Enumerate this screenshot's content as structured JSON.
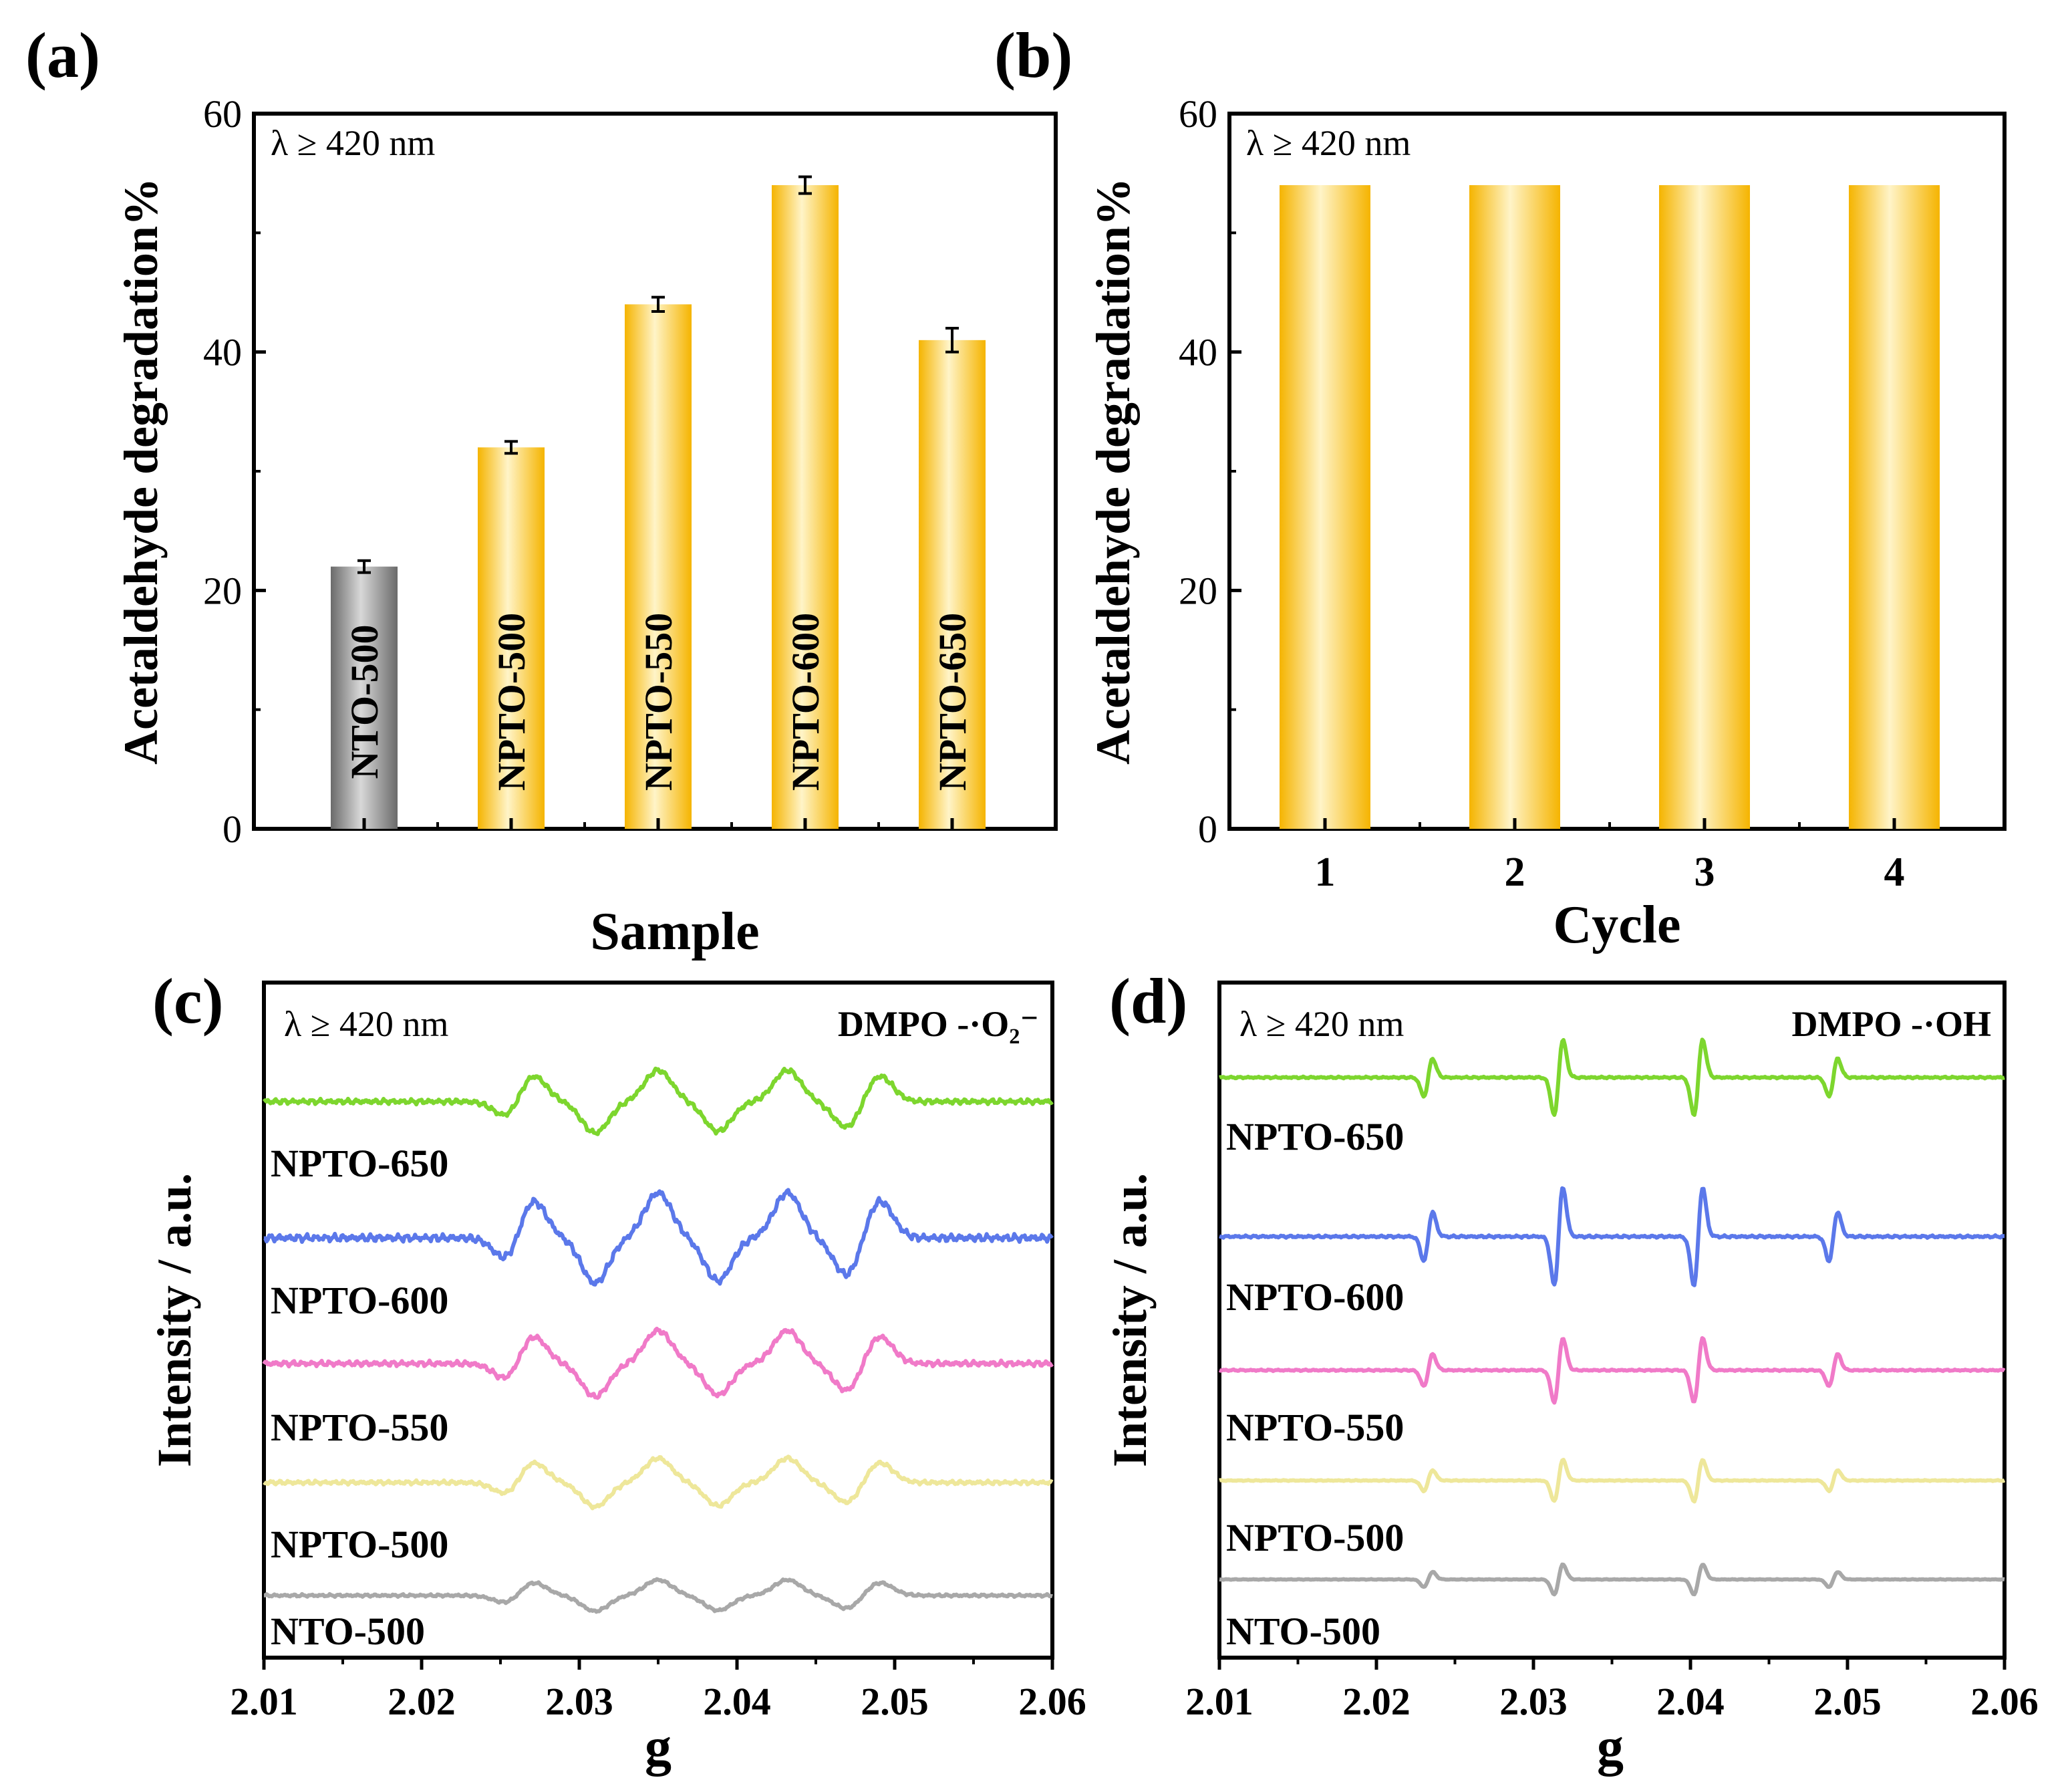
{
  "figure": {
    "panel_labels": [
      "(a)",
      "(b)",
      "(c)",
      "(d)"
    ]
  },
  "chart_data": [
    {
      "id": "a",
      "type": "bar",
      "annotation": "λ ≥ 420 nm",
      "xlabel": "Sample",
      "ylabel": "Acetaldehyde degradation%",
      "ylim": [
        0,
        60
      ],
      "yticks": [
        "0",
        "20",
        "40",
        "60"
      ],
      "categories": [
        "NTO-500",
        "NPTO-500",
        "NPTO-550",
        "NPTO-600",
        "NPTO-650"
      ],
      "values": [
        22,
        32,
        44,
        54,
        41
      ],
      "errors": [
        0.5,
        0.5,
        0.6,
        0.7,
        1.0
      ],
      "colors": [
        "#8a8a8a",
        "#f5b400",
        "#f5b400",
        "#f5b400",
        "#f5b400"
      ]
    },
    {
      "id": "b",
      "type": "bar",
      "annotation": "λ ≥ 420 nm",
      "xlabel": "Cycle",
      "ylabel": "Acetaldehyde degradation%",
      "ylim": [
        0,
        60
      ],
      "yticks": [
        "0",
        "20",
        "40",
        "60"
      ],
      "categories": [
        "1",
        "2",
        "3",
        "4"
      ],
      "values": [
        54,
        54,
        54,
        54
      ],
      "colors": [
        "#f5b400",
        "#f5b400",
        "#f5b400",
        "#f5b400"
      ]
    },
    {
      "id": "c",
      "type": "line",
      "annotation": "λ ≥ 420 nm",
      "probe": "DMPO -·O₂⁻",
      "xlabel": "g",
      "ylabel": "Intensity / a.u.",
      "xlim": [
        2.01,
        2.06
      ],
      "xticks": [
        "2.01",
        "2.02",
        "2.03",
        "2.04",
        "2.05",
        "2.06"
      ],
      "peaks": [
        {
          "g": 2.0255,
          "sign": -1,
          "h": 0.55
        },
        {
          "g": 2.027,
          "sign": 1,
          "h": 0.9
        },
        {
          "g": 2.031,
          "sign": -1,
          "h": 1.0
        },
        {
          "g": 2.035,
          "sign": 1,
          "h": 1.0
        },
        {
          "g": 2.0388,
          "sign": -1,
          "h": 0.95
        },
        {
          "g": 2.0432,
          "sign": 1,
          "h": 1.0
        },
        {
          "g": 2.047,
          "sign": -1,
          "h": 0.85
        },
        {
          "g": 2.049,
          "sign": 1,
          "h": 0.85
        }
      ],
      "series": [
        {
          "name": "NPTO-650",
          "color": "#7dd62e",
          "scale": 0.9
        },
        {
          "name": "NPTO-600",
          "color": "#5b78ea",
          "scale": 1.3
        },
        {
          "name": "NPTO-550",
          "color": "#f07ac8",
          "scale": 0.95
        },
        {
          "name": "NPTO-500",
          "color": "#eee79a",
          "scale": 0.7
        },
        {
          "name": "NTO-500",
          "color": "#a8a8a8",
          "scale": 0.45
        }
      ]
    },
    {
      "id": "d",
      "type": "line",
      "annotation": "λ ≥ 420 nm",
      "probe": "DMPO -·OH",
      "xlabel": "g",
      "ylabel": "Intensity / a.u.",
      "xlim": [
        2.01,
        2.06
      ],
      "xticks": [
        "2.01",
        "2.02",
        "2.03",
        "2.04",
        "2.05",
        "2.06"
      ],
      "peaks": [
        {
          "g": 2.0233,
          "h": 0.5
        },
        {
          "g": 2.0316,
          "h": 1.0
        },
        {
          "g": 2.0405,
          "h": 1.0
        },
        {
          "g": 2.0491,
          "h": 0.5
        }
      ],
      "series": [
        {
          "name": "NPTO-650",
          "color": "#7dd62e",
          "scale": 1.0
        },
        {
          "name": "NPTO-600",
          "color": "#5b78ea",
          "scale": 1.3
        },
        {
          "name": "NPTO-550",
          "color": "#f07ac8",
          "scale": 0.85
        },
        {
          "name": "NPTO-500",
          "color": "#eee79a",
          "scale": 0.55
        },
        {
          "name": "NTO-500",
          "color": "#a8a8a8",
          "scale": 0.4
        }
      ]
    }
  ]
}
